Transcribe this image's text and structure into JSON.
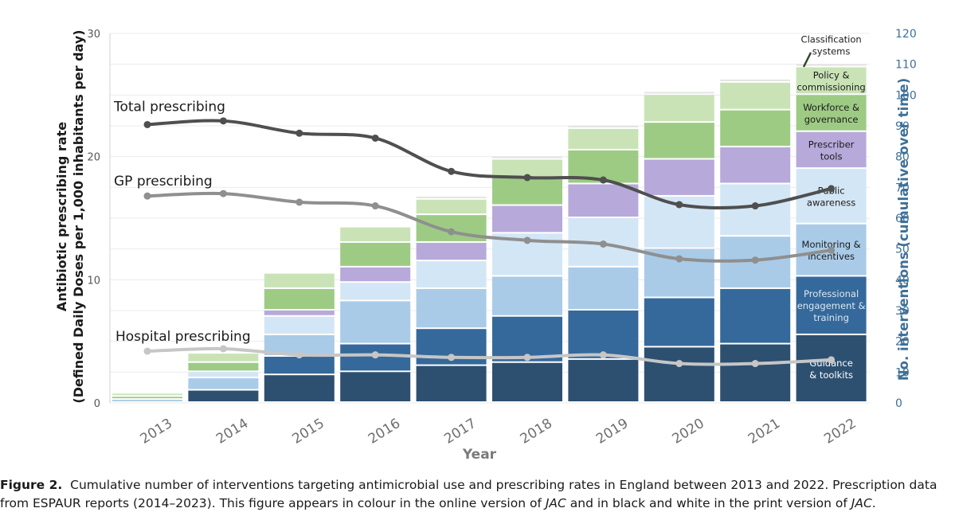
{
  "colors": {
    "guidance": "#2d5071",
    "professional": "#35699b",
    "monitoring": "#a9cbe7",
    "public": "#d3e6f5",
    "prescriber": "#b7a9da",
    "workforce": "#9dcb84",
    "policy": "#c9e3b7",
    "classification": "#e2e2e2",
    "total_line": "#4f4f4f",
    "gp_line": "#8f8f8f",
    "hospital_line": "#c6c6c6",
    "right_axis": "#3e6f96",
    "grid": "#ebebeb"
  },
  "chart_data": {
    "type": "bar",
    "title": "",
    "xlabel": "Year",
    "ylabel_left": "Antibiotic prescribing rate (Defined Daily Doses per 1,000 inhabitants per day)",
    "ylabel_left_lines": [
      "Antibiotic prescribing rate",
      "(Defined Daily Doses per 1,000 inhabitants per day)"
    ],
    "ylabel_right": "No. interventions (cumulative over time)",
    "ylim_left": [
      0,
      30
    ],
    "ylim_right": [
      0,
      120
    ],
    "yticks_left": [
      0,
      10,
      20,
      30
    ],
    "yticks_right": [
      0,
      10,
      20,
      30,
      40,
      50,
      60,
      70,
      80,
      90,
      100,
      110,
      120
    ],
    "categories": [
      "2013",
      "2014",
      "2015",
      "2016",
      "2017",
      "2018",
      "2019",
      "2020",
      "2021",
      "2022"
    ],
    "stacked_series": [
      {
        "key": "guidance",
        "name": "Guidance & toolkits",
        "values": [
          0,
          4,
          9,
          10,
          12,
          13,
          14,
          18,
          19,
          22
        ]
      },
      {
        "key": "professional",
        "name": "Professional engagement & training",
        "values": [
          0,
          0,
          6,
          9,
          12,
          15,
          16,
          16,
          18,
          19
        ]
      },
      {
        "key": "monitoring",
        "name": "Monitoring & incentives",
        "values": [
          1,
          4,
          7,
          14,
          13,
          13,
          14,
          16,
          17,
          17
        ]
      },
      {
        "key": "public",
        "name": "Public awareness",
        "values": [
          0,
          2,
          6,
          6,
          9,
          14,
          16,
          17,
          17,
          18
        ]
      },
      {
        "key": "prescriber",
        "name": "Prescriber tools",
        "values": [
          0,
          0,
          2,
          5,
          6,
          9,
          11,
          12,
          12,
          12
        ]
      },
      {
        "key": "workforce",
        "name": "Workforce & governance",
        "values": [
          1,
          3,
          7,
          8,
          9,
          9,
          11,
          12,
          12,
          12
        ]
      },
      {
        "key": "policy",
        "name": "Policy & commissioning",
        "values": [
          1,
          3,
          5,
          5,
          5,
          6,
          7,
          9,
          9,
          9
        ]
      },
      {
        "key": "classification",
        "name": "Classification systems",
        "values": [
          0,
          0,
          0,
          0,
          1,
          1,
          1,
          1,
          1,
          1
        ]
      }
    ],
    "line_series": [
      {
        "key": "total",
        "name": "Total prescribing",
        "values": [
          22.6,
          22.9,
          21.9,
          21.5,
          18.8,
          18.3,
          18.1,
          16.1,
          16.0,
          17.4
        ]
      },
      {
        "key": "gp",
        "name": "GP prescribing",
        "values": [
          16.8,
          17.0,
          16.3,
          16.0,
          13.9,
          13.2,
          12.9,
          11.7,
          11.6,
          12.4
        ]
      },
      {
        "key": "hospital",
        "name": "Hospital prescribing",
        "values": [
          4.2,
          4.4,
          3.9,
          3.9,
          3.7,
          3.7,
          3.9,
          3.2,
          3.2,
          3.5
        ]
      }
    ],
    "line_labels": [
      {
        "key": "total",
        "text": "Total prescribing"
      },
      {
        "key": "gp",
        "text": "GP prescribing"
      },
      {
        "key": "hospital",
        "text": "Hospital prescribing"
      }
    ],
    "segment_labels": [
      {
        "key": "guidance",
        "lines": [
          "Guidance",
          "& toolkits"
        ]
      },
      {
        "key": "professional",
        "lines": [
          "Professional",
          "engagement &",
          "training"
        ]
      },
      {
        "key": "monitoring",
        "lines": [
          "Monitoring &",
          "incentives"
        ]
      },
      {
        "key": "public",
        "lines": [
          "Public",
          "awareness"
        ]
      },
      {
        "key": "prescriber",
        "lines": [
          "Prescriber",
          "tools"
        ]
      },
      {
        "key": "workforce",
        "lines": [
          "Workforce &",
          "governance"
        ]
      },
      {
        "key": "policy",
        "lines": [
          "Policy &",
          "commissioning"
        ]
      },
      {
        "key": "classification",
        "lines": [
          "Classification",
          "systems"
        ]
      }
    ]
  },
  "caption": {
    "label": "Figure 2.",
    "line1": "Cumulative number of interventions targeting antimicrobial use and prescribing rates in England between 2013 and 2022. Prescription data",
    "line2_a": "from ESPAUR reports (2014–2023). This figure appears in colour in the online version of ",
    "jac1": "JAC",
    "line2_b": " and in black and white in the print version of ",
    "jac2": "JAC",
    "line2_c": "."
  }
}
